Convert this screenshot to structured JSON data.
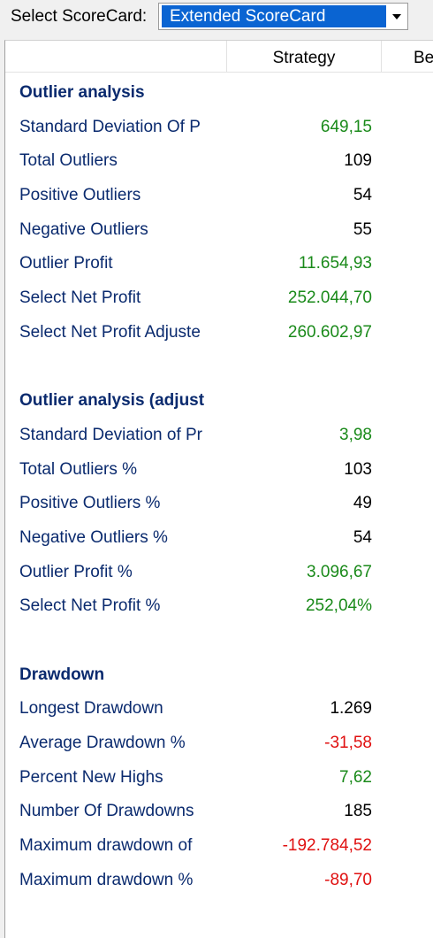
{
  "toolbar": {
    "label": "Select ScoreCard:",
    "selected": "Extended ScoreCard"
  },
  "header": {
    "col1": "",
    "col2": "Strategy",
    "col3": "Be"
  },
  "sections": [
    {
      "title": "Outlier analysis",
      "rows": [
        {
          "label": "Standard Deviation Of P",
          "value": "649,15",
          "tone": "green"
        },
        {
          "label": "Total Outliers",
          "value": "109",
          "tone": "black"
        },
        {
          "label": "Positive Outliers",
          "value": "54",
          "tone": "black"
        },
        {
          "label": "Negative Outliers",
          "value": "55",
          "tone": "black"
        },
        {
          "label": "Outlier Profit",
          "value": "11.654,93",
          "tone": "green"
        },
        {
          "label": "Select Net Profit",
          "value": "252.044,70",
          "tone": "green"
        },
        {
          "label": "Select Net Profit Adjuste",
          "value": "260.602,97",
          "tone": "green"
        }
      ]
    },
    {
      "title": "Outlier analysis (adjust",
      "rows": [
        {
          "label": "Standard Deviation of Pr",
          "value": "3,98",
          "tone": "green"
        },
        {
          "label": "Total Outliers %",
          "value": "103",
          "tone": "black"
        },
        {
          "label": "Positive Outliers %",
          "value": "49",
          "tone": "black"
        },
        {
          "label": "Negative Outliers %",
          "value": "54",
          "tone": "black"
        },
        {
          "label": "Outlier Profit %",
          "value": "3.096,67",
          "tone": "green"
        },
        {
          "label": "Select Net Profit %",
          "value": "252,04%",
          "tone": "green"
        }
      ]
    },
    {
      "title": "Drawdown",
      "rows": [
        {
          "label": "Longest Drawdown",
          "value": "1.269",
          "tone": "black"
        },
        {
          "label": "Average Drawdown %",
          "value": "-31,58",
          "tone": "red"
        },
        {
          "label": "Percent New Highs",
          "value": "7,62",
          "tone": "green"
        },
        {
          "label": "Number Of Drawdowns",
          "value": "185",
          "tone": "black"
        },
        {
          "label": "Maximum drawdown of",
          "value": "-192.784,52",
          "tone": "red"
        },
        {
          "label": "Maximum drawdown %",
          "value": "-89,70",
          "tone": "red"
        }
      ]
    }
  ],
  "colors": {
    "green": "#1a8a1a",
    "black": "#000000",
    "red": "#e01010",
    "label": "#0a2a6e",
    "selection": "#0a64d2"
  }
}
